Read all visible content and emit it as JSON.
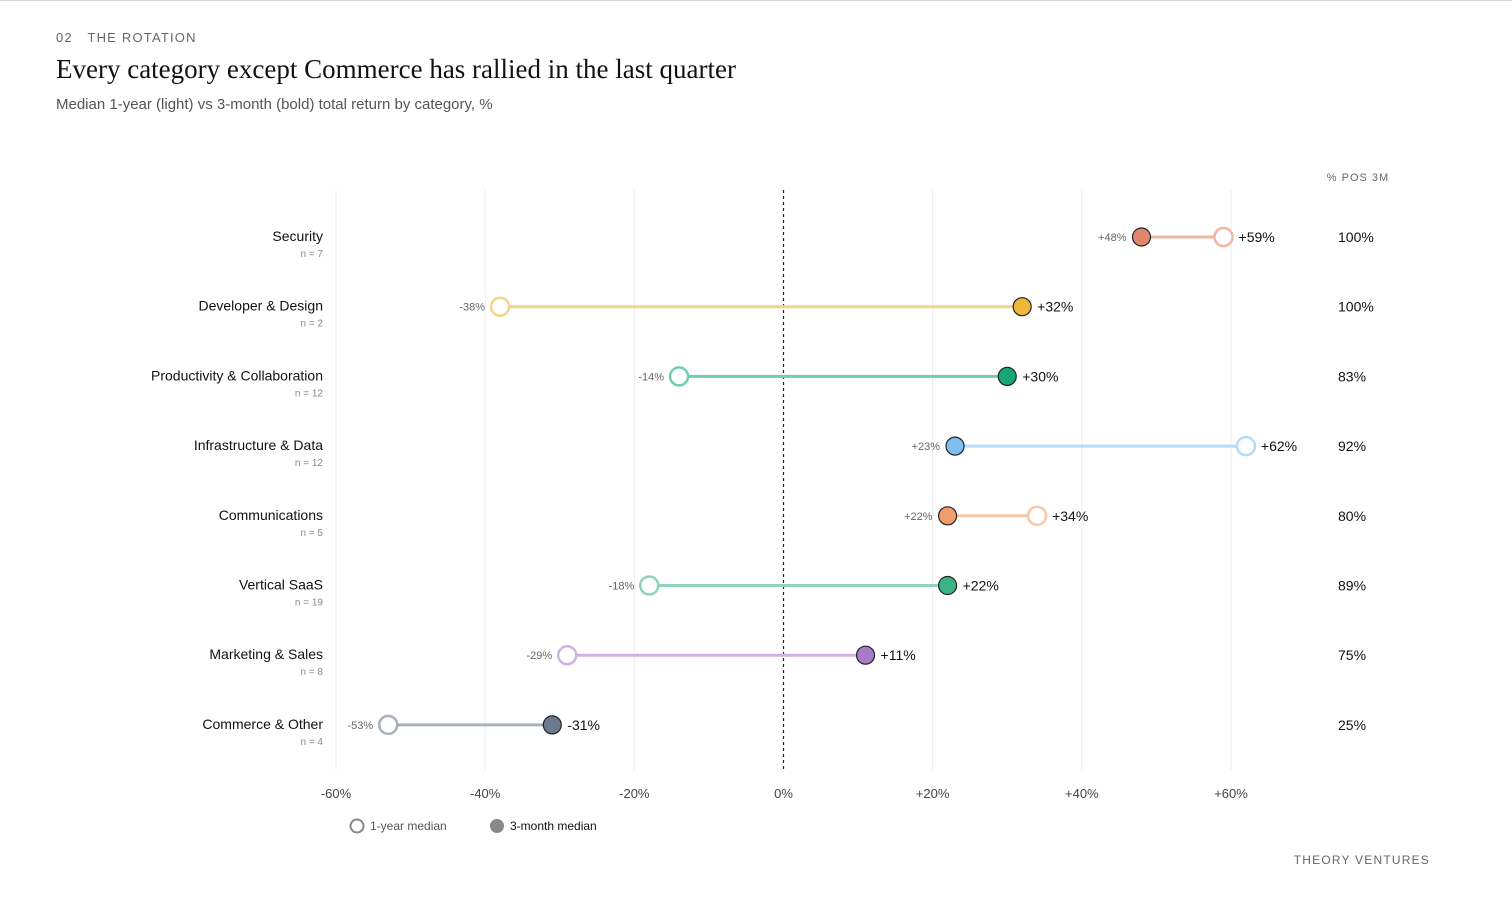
{
  "kicker": {
    "number": "02",
    "label": "THE ROTATION"
  },
  "title": "Every category except Commerce has rallied in the last quarter",
  "subtitle": "Median 1-year (light) vs 3-month (bold) total return by category, %",
  "footer": "THEORY VENTURES",
  "chart_data": {
    "type": "dumbbell",
    "xlim": [
      -60,
      60
    ],
    "x_ticks": [
      -60,
      -40,
      -20,
      0,
      20,
      40,
      60
    ],
    "x_tick_labels": [
      "-60%",
      "-40%",
      "-20%",
      "0%",
      "+20%",
      "+40%",
      "+60%"
    ],
    "zero_line": "dashed",
    "grid": true,
    "right_column_header": "% POS 3M",
    "legend": {
      "placement": "bottom-left",
      "one_year": "1-year median",
      "three_month": "3-month median"
    },
    "categories": [
      {
        "name": "Security",
        "n": "n = 7",
        "one_year": 59,
        "three_month": 48,
        "one_year_label": "+59%",
        "three_month_label": "+48%",
        "pos_3m": "100%",
        "color": "#e0866a",
        "light_color": "#efb7a3"
      },
      {
        "name": "Developer & Design",
        "n": "n = 2",
        "one_year": -38,
        "three_month": 32,
        "one_year_label": "-38%",
        "three_month_label": "+32%",
        "pos_3m": "100%",
        "color": "#f0b73a",
        "light_color": "#f3d58d"
      },
      {
        "name": "Productivity & Collaboration",
        "n": "n = 12",
        "one_year": -14,
        "three_month": 30,
        "one_year_label": "-14%",
        "three_month_label": "+30%",
        "pos_3m": "83%",
        "color": "#15a874",
        "light_color": "#74cda9"
      },
      {
        "name": "Infrastructure & Data",
        "n": "n = 12",
        "one_year": 62,
        "three_month": 23,
        "one_year_label": "+62%",
        "three_month_label": "+23%",
        "pos_3m": "92%",
        "color": "#7dbdf0",
        "light_color": "#b5dbf6"
      },
      {
        "name": "Communications",
        "n": "n = 5",
        "one_year": 34,
        "three_month": 22,
        "one_year_label": "+34%",
        "three_month_label": "+22%",
        "pos_3m": "80%",
        "color": "#ee9e6b",
        "light_color": "#f4c8a7"
      },
      {
        "name": "Vertical SaaS",
        "n": "n = 19",
        "one_year": -18,
        "three_month": 22,
        "one_year_label": "-18%",
        "three_month_label": "+22%",
        "pos_3m": "89%",
        "color": "#3ab487",
        "light_color": "#8fd4b8"
      },
      {
        "name": "Marketing & Sales",
        "n": "n = 8",
        "one_year": -29,
        "three_month": 11,
        "one_year_label": "-29%",
        "three_month_label": "+11%",
        "pos_3m": "75%",
        "color": "#a77bc8",
        "light_color": "#d0b2e0"
      },
      {
        "name": "Commerce & Other",
        "n": "n = 4",
        "one_year": -53,
        "three_month": -31,
        "one_year_label": "-53%",
        "three_month_label": "-31%",
        "pos_3m": "25%",
        "color": "#6b7a8d",
        "light_color": "#a8b1bc"
      }
    ]
  }
}
